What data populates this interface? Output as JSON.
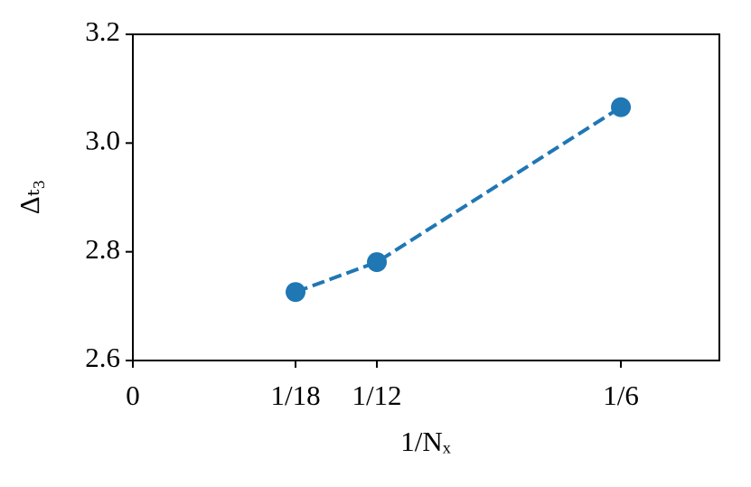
{
  "chart_data": {
    "type": "line",
    "xlabel": "1/Nₓ",
    "ylabel": "Δₜ₃",
    "x": [
      0.05556,
      0.08333,
      0.16667
    ],
    "series": [
      {
        "color": "#1f77b4",
        "values": [
          2.726,
          2.781,
          3.066
        ]
      }
    ],
    "xlim": [
      0,
      0.2003
    ],
    "ylim": [
      2.6,
      3.2
    ],
    "xticks": [
      0,
      {
        "value": 0.05556,
        "label": "1/18"
      },
      {
        "value": 0.08333,
        "label": "1/12"
      },
      {
        "value": 0.16667,
        "label": "1/6"
      }
    ],
    "yticks": [
      2.6,
      2.8,
      {
        "value": 3,
        "label": "3.0"
      },
      3.2
    ],
    "line_style": "dashed",
    "markers": true,
    "grid": false
  }
}
